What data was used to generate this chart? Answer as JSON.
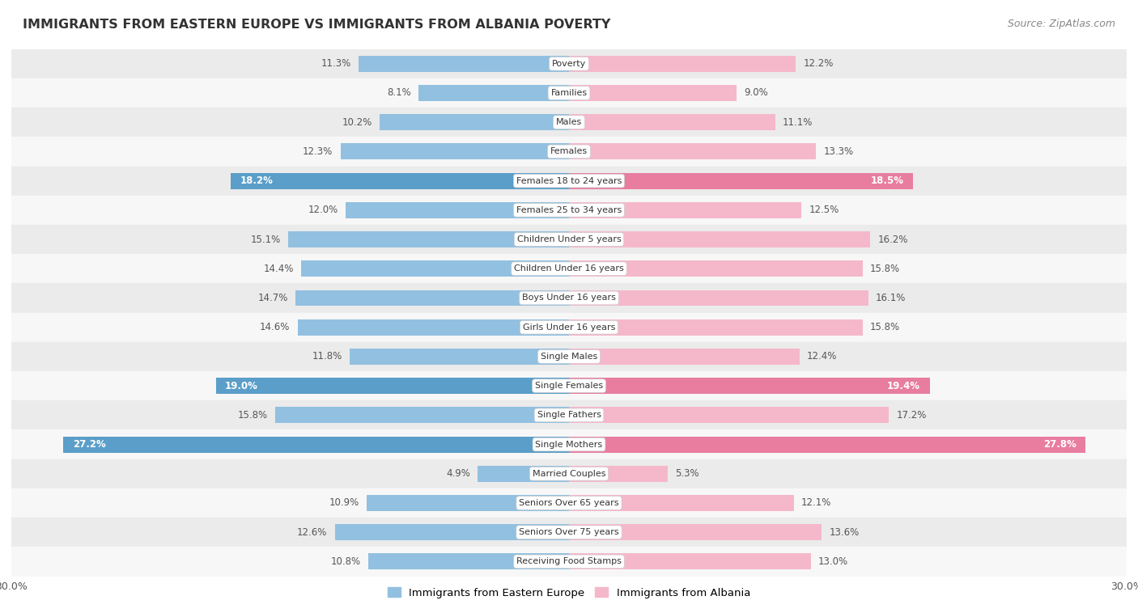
{
  "title": "IMMIGRANTS FROM EASTERN EUROPE VS IMMIGRANTS FROM ALBANIA POVERTY",
  "source": "Source: ZipAtlas.com",
  "categories": [
    "Poverty",
    "Families",
    "Males",
    "Females",
    "Females 18 to 24 years",
    "Females 25 to 34 years",
    "Children Under 5 years",
    "Children Under 16 years",
    "Boys Under 16 years",
    "Girls Under 16 years",
    "Single Males",
    "Single Females",
    "Single Fathers",
    "Single Mothers",
    "Married Couples",
    "Seniors Over 65 years",
    "Seniors Over 75 years",
    "Receiving Food Stamps"
  ],
  "eastern_europe": [
    11.3,
    8.1,
    10.2,
    12.3,
    18.2,
    12.0,
    15.1,
    14.4,
    14.7,
    14.6,
    11.8,
    19.0,
    15.8,
    27.2,
    4.9,
    10.9,
    12.6,
    10.8
  ],
  "albania": [
    12.2,
    9.0,
    11.1,
    13.3,
    18.5,
    12.5,
    16.2,
    15.8,
    16.1,
    15.8,
    12.4,
    19.4,
    17.2,
    27.8,
    5.3,
    12.1,
    13.6,
    13.0
  ],
  "highlight_rows": [
    4,
    11,
    13
  ],
  "eastern_europe_color": "#92c0e0",
  "eastern_europe_highlight_color": "#5a9ec9",
  "albania_color": "#f5b8ca",
  "albania_highlight_color": "#e87da0",
  "label_color_normal": "#555555",
  "label_color_highlight": "#ffffff",
  "bg_color_odd": "#ebebeb",
  "bg_color_even": "#f7f7f7",
  "axis_max": 30.0,
  "bar_height": 0.55,
  "legend_eastern": "Immigrants from Eastern Europe",
  "legend_albania": "Immigrants from Albania"
}
